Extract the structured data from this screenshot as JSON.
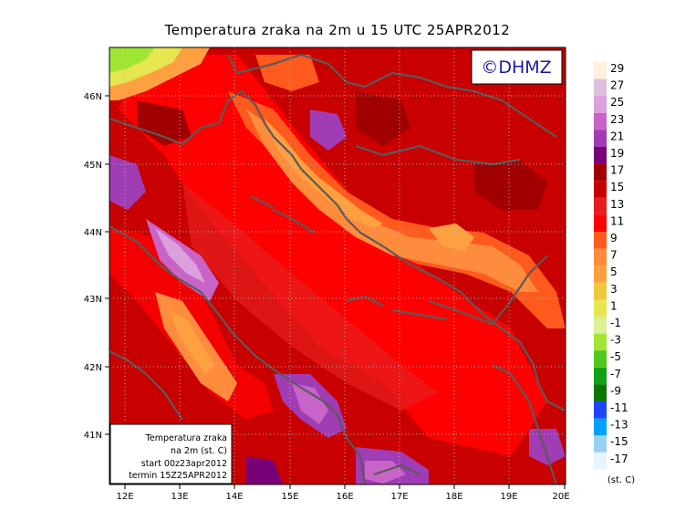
{
  "title": "Temperatura zraka na 2m u 15 UTC 25APR2012",
  "logo_text": "©DHMZ",
  "x_ticks": [
    "12E",
    "13E",
    "14E",
    "15E",
    "16E",
    "17E",
    "18E",
    "19E",
    "20E"
  ],
  "y_ticks": [
    "46N",
    "45N",
    "44N",
    "43N",
    "42N",
    "41N"
  ],
  "legend": {
    "unit": "(st. C)",
    "labels": [
      "29",
      "27",
      "25",
      "23",
      "21",
      "19",
      "17",
      "15",
      "13",
      "11",
      "9",
      "7",
      "5",
      "3",
      "1",
      "-1",
      "-3",
      "-5",
      "-7",
      "-9",
      "-11",
      "-13",
      "-15",
      "-17"
    ],
    "colors": [
      "#fff0e0",
      "#dcc0dc",
      "#dca0dc",
      "#c864c8",
      "#a03cb4",
      "#780078",
      "#a00000",
      "#c80000",
      "#e61e1e",
      "#ff0000",
      "#ff5a1e",
      "#ff8c3c",
      "#ffa040",
      "#f0c83c",
      "#e6e650",
      "#dcf096",
      "#a0e632",
      "#50c81e",
      "#14a014",
      "#0a7800",
      "#1e46ff",
      "#00a0ff",
      "#96d2f0",
      "#e6f5ff"
    ]
  },
  "info_box": {
    "line1": "Temperatura zraka",
    "line2": "na 2m (st. C)",
    "line3": "start 00z23apr2012",
    "line4": "termin 15Z25APR2012"
  }
}
